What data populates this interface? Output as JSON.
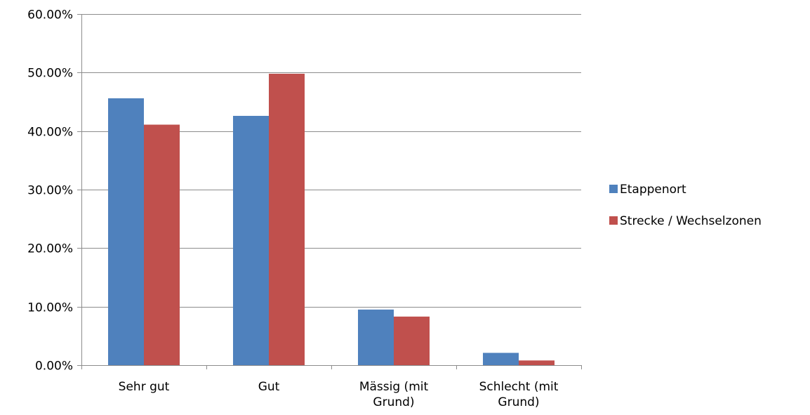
{
  "chart_data": {
    "type": "bar",
    "title": "",
    "xlabel": "",
    "ylabel": "",
    "categories": [
      [
        "Sehr gut"
      ],
      [
        "Gut"
      ],
      [
        "Mässig (mit",
        "Grund)"
      ],
      [
        "Schlecht (mit",
        "Grund)"
      ]
    ],
    "series": [
      {
        "name": "Etappenort",
        "color": "#4F81BD",
        "values": [
          45.6,
          42.6,
          9.5,
          2.1
        ]
      },
      {
        "name": "Strecke / Wechselzonen",
        "color": "#C0504D",
        "values": [
          41.1,
          49.8,
          8.3,
          0.8
        ]
      }
    ],
    "ylim": [
      0,
      60
    ],
    "yticks": [
      0,
      10,
      20,
      30,
      40,
      50,
      60
    ],
    "ytick_labels": [
      "0.00%",
      "10.00%",
      "20.00%",
      "30.00%",
      "40.00%",
      "50.00%",
      "60.00%"
    ],
    "grid": true,
    "legend_position": "right"
  }
}
